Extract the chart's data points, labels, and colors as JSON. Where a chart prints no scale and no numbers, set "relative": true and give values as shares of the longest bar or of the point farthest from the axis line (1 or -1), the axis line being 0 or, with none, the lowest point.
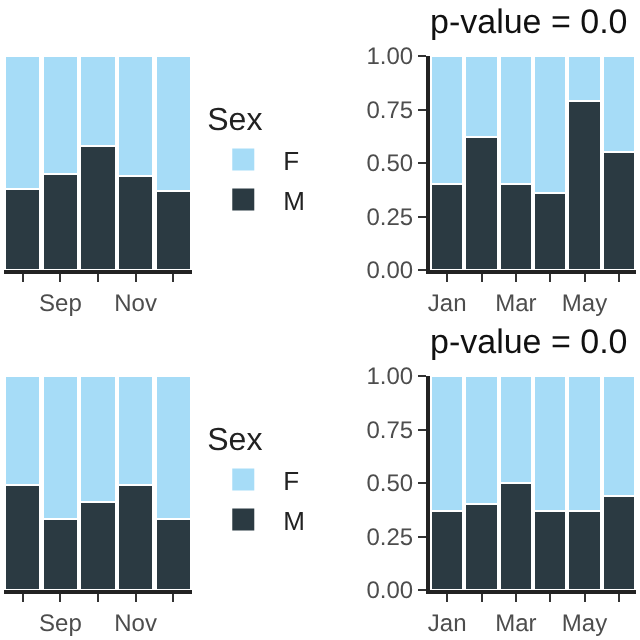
{
  "chart_data": [
    {
      "type": "bar",
      "stacked": true,
      "relative": true,
      "tick_labels": "x",
      "legend": "right",
      "legend_title": "Sex",
      "categories": [
        null,
        "Sep",
        null,
        "Nov",
        null
      ],
      "series": [
        {
          "name": "M",
          "color": "#2b3a42",
          "values": [
            0.38,
            0.45,
            0.58,
            0.44,
            0.37
          ]
        },
        {
          "name": "F",
          "color": "#a6dcf7",
          "values": [
            0.62,
            0.55,
            0.42,
            0.56,
            0.63
          ]
        }
      ]
    },
    {
      "type": "bar",
      "stacked": true,
      "title": "p-value = 0.0",
      "categories": [
        "Jan",
        null,
        "Mar",
        null,
        "May",
        null
      ],
      "ylim": [
        0,
        1
      ],
      "yticks": [
        {
          "value": 0,
          "label": "0.00"
        },
        {
          "value": 0.25,
          "label": "0.25"
        },
        {
          "value": 0.5,
          "label": "0.50"
        },
        {
          "value": 0.75,
          "label": "0.75"
        },
        {
          "value": 1,
          "label": "1.00"
        }
      ],
      "series": [
        {
          "color": "#2b3a42",
          "values": [
            0.4,
            0.62,
            0.4,
            0.36,
            0.79,
            0.55
          ]
        },
        {
          "color": "#a6dcf7",
          "values": [
            0.6,
            0.38,
            0.6,
            0.64,
            0.21,
            0.45
          ]
        }
      ]
    },
    {
      "type": "bar",
      "stacked": true,
      "relative": true,
      "tick_labels": "x",
      "legend": "right",
      "legend_title": "Sex",
      "categories": [
        null,
        "Sep",
        null,
        "Nov",
        null
      ],
      "series": [
        {
          "name": "M",
          "color": "#2b3a42",
          "values": [
            0.49,
            0.33,
            0.41,
            0.49,
            0.33
          ]
        },
        {
          "name": "F",
          "color": "#a6dcf7",
          "values": [
            0.51,
            0.67,
            0.59,
            0.51,
            0.67
          ]
        }
      ]
    },
    {
      "type": "bar",
      "stacked": true,
      "title": "p-value = 0.0",
      "categories": [
        "Jan",
        null,
        "Mar",
        null,
        "May",
        null
      ],
      "ylim": [
        0,
        1
      ],
      "yticks": [
        {
          "value": 0,
          "label": "0.00"
        },
        {
          "value": 0.25,
          "label": "0.25"
        },
        {
          "value": 0.5,
          "label": "0.50"
        },
        {
          "value": 0.75,
          "label": "0.75"
        },
        {
          "value": 1,
          "label": "1.00"
        }
      ],
      "series": [
        {
          "color": "#2b3a42",
          "values": [
            0.37,
            0.4,
            0.5,
            0.37,
            0.37,
            0.44
          ]
        },
        {
          "color": "#a6dcf7",
          "values": [
            0.63,
            0.6,
            0.5,
            0.63,
            0.63,
            0.56
          ]
        }
      ]
    }
  ]
}
